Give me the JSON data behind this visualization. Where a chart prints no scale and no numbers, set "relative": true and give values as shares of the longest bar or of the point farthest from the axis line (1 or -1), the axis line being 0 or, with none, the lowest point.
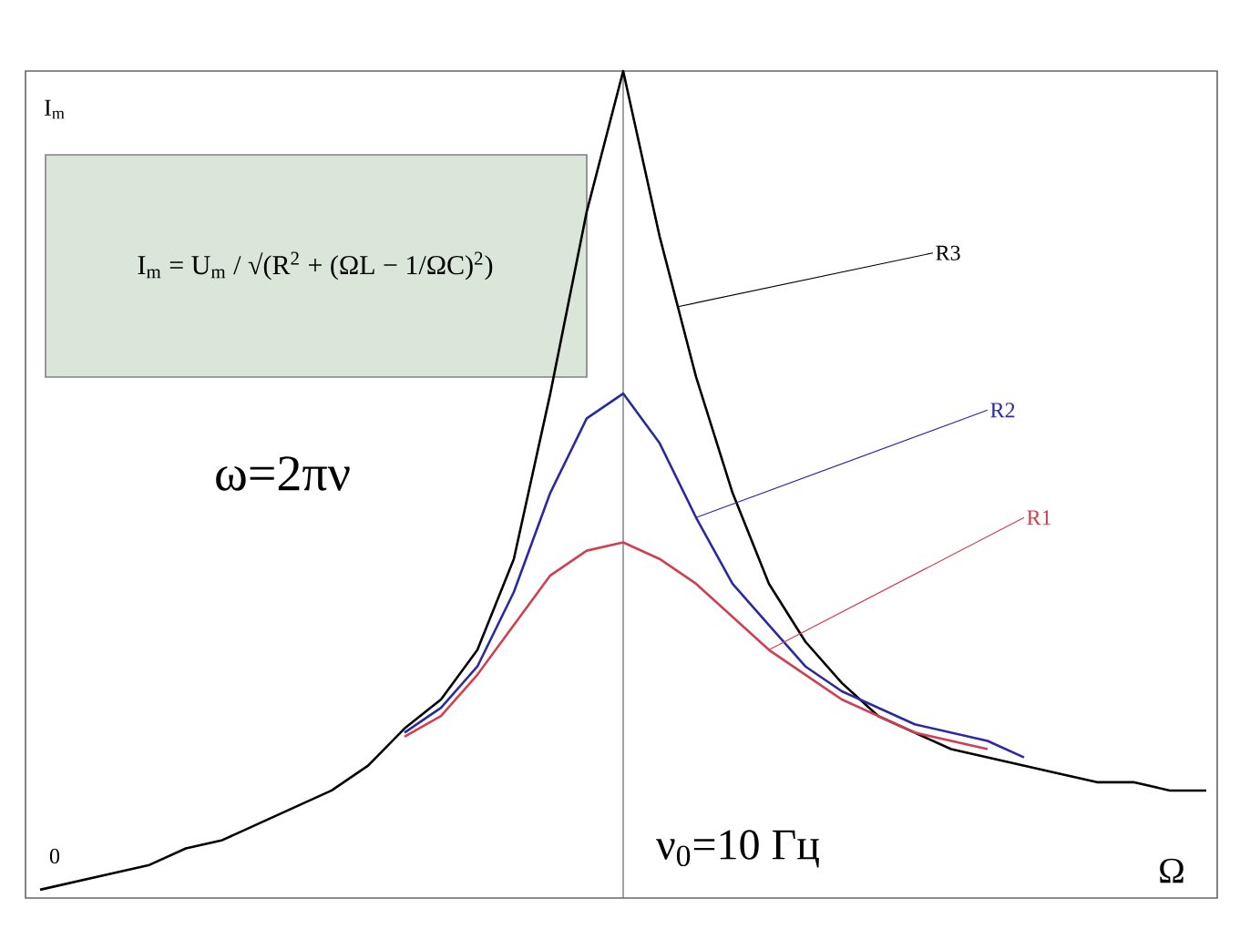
{
  "chart_data": {
    "type": "line",
    "relative": true,
    "xlabel": "Ω",
    "ylabel": "I$_{m}$",
    "categories": [
      null,
      null,
      null,
      null,
      null,
      null,
      null,
      null,
      null,
      null,
      null,
      null,
      null,
      null,
      null,
      null,
      null,
      null,
      null,
      null,
      null,
      null,
      null,
      null,
      null,
      null,
      null,
      null,
      null,
      null,
      null,
      null,
      null
    ],
    "series": [
      {
        "name": "R1",
        "color": "#d04050",
        "values": [
          null,
          null,
          null,
          null,
          null,
          null,
          null,
          null,
          null,
          null,
          0.195,
          0.22,
          0.27,
          0.33,
          0.39,
          0.42,
          0.43,
          0.41,
          0.38,
          0.34,
          0.3,
          0.27,
          0.24,
          0.22,
          0.2,
          0.19,
          0.18,
          null,
          null,
          null,
          null,
          null,
          null
        ]
      },
      {
        "name": "R2",
        "color": "#2a2aa0",
        "values": [
          null,
          null,
          null,
          null,
          null,
          null,
          null,
          null,
          null,
          null,
          0.2,
          0.23,
          0.28,
          0.37,
          0.49,
          0.58,
          0.61,
          0.55,
          0.46,
          0.38,
          0.33,
          0.28,
          0.25,
          0.23,
          0.21,
          0.2,
          0.19,
          0.17,
          null,
          null,
          null,
          null,
          null
        ]
      },
      {
        "name": "R3",
        "color": "#000000",
        "values": [
          0.01,
          0.02,
          0.03,
          0.04,
          0.06,
          0.07,
          0.09,
          0.11,
          0.13,
          0.16,
          0.205,
          0.24,
          0.3,
          0.41,
          0.61,
          0.83,
          1.0,
          0.8,
          0.63,
          0.49,
          0.38,
          0.31,
          0.26,
          0.22,
          0.2,
          0.18,
          0.17,
          0.16,
          0.15,
          0.14,
          0.14,
          0.13,
          0.13
        ]
      }
    ],
    "annotations": [
      "0",
      "I$_{m}$ = U$_{m}$ / √(R$^{2}$ + (ΩL − 1/ΩC)$^{2}$)",
      "ω=2πν",
      "ν$_{0}$=10 Гц"
    ],
    "legend": false
  }
}
